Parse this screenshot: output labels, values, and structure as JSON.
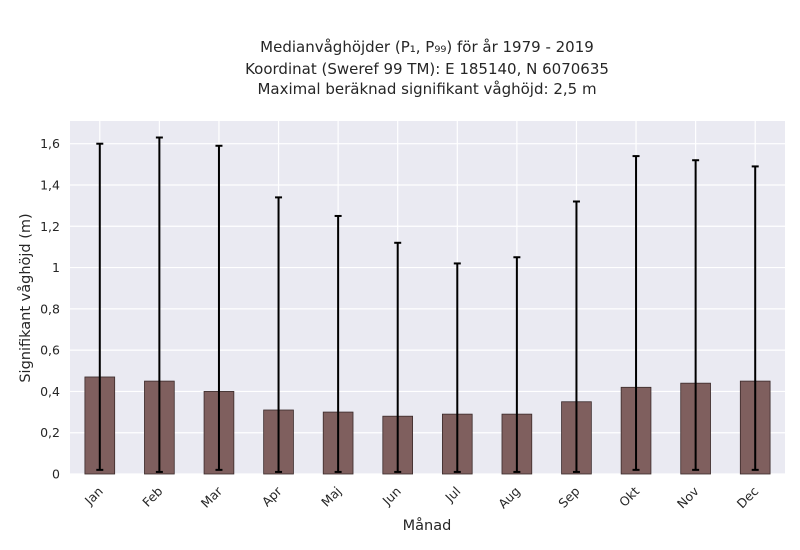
{
  "chart_data": {
    "type": "bar",
    "title_lines": [
      "Medianvåghöjder (P₁, P₉₉) för år 1979 - 2019",
      "Koordinat (Sweref 99 TM): E 185140, N 6070635",
      "Maximal beräknad signifikant våghöjd: 2,5 m"
    ],
    "xlabel": "Månad",
    "ylabel": "Signifikant våghöjd (m)",
    "categories": [
      "Jan",
      "Feb",
      "Mar",
      "Apr",
      "Maj",
      "Jun",
      "Jul",
      "Aug",
      "Sep",
      "Okt",
      "Nov",
      "Dec"
    ],
    "values": [
      0.47,
      0.45,
      0.4,
      0.31,
      0.3,
      0.28,
      0.29,
      0.29,
      0.35,
      0.42,
      0.44,
      0.45
    ],
    "p1": [
      0.02,
      0.01,
      0.02,
      0.01,
      0.01,
      0.01,
      0.01,
      0.01,
      0.01,
      0.02,
      0.02,
      0.02
    ],
    "p99": [
      1.6,
      1.63,
      1.59,
      1.34,
      1.25,
      1.12,
      1.02,
      1.05,
      1.32,
      1.54,
      1.52,
      1.49
    ],
    "ylim": [
      0,
      1.71
    ],
    "yticks": [
      0,
      0.2,
      0.4,
      0.6,
      0.8,
      1,
      1.2,
      1.4,
      1.6
    ],
    "ytick_labels": [
      "0",
      "0,2",
      "0,4",
      "0,6",
      "0,8",
      "1",
      "1,2",
      "1,4",
      "1,6"
    ],
    "grid": true,
    "colors": {
      "bar": "#7f5f5e",
      "bar_edge": "#3a2a2a",
      "errorbar": "#000000",
      "plot_bg": "#eaeaf2",
      "grid": "#ffffff"
    }
  }
}
